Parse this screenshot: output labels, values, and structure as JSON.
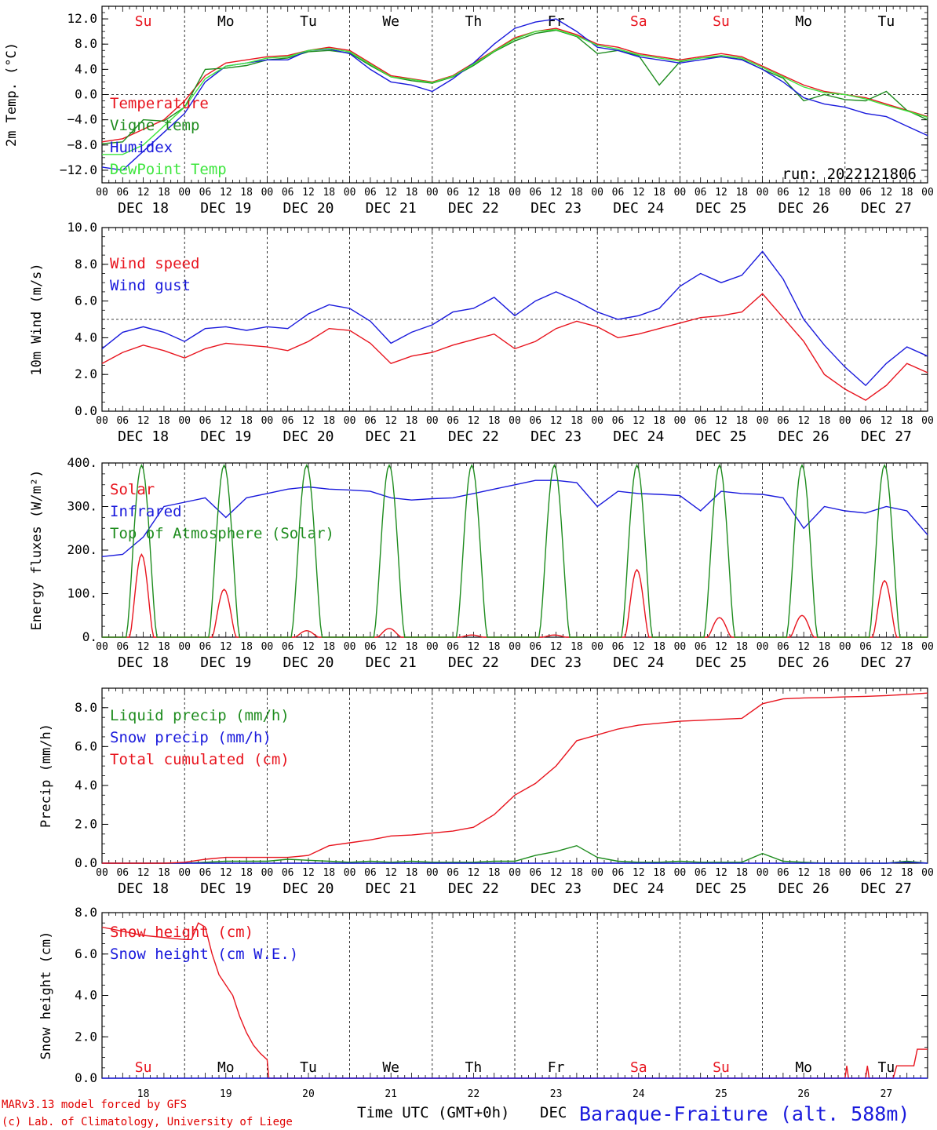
{
  "colors": {
    "red": "#e8141e",
    "green": "#1e8c1e",
    "blue": "#1a1adc",
    "lightgreen": "#3ee63e",
    "darkred": "#c80000"
  },
  "run_label": "run: 2022121806",
  "x_axis": {
    "title": "Time UTC (GMT+0h)",
    "month": "DEC",
    "hour_labels": [
      "00",
      "06",
      "12",
      "18"
    ],
    "dates": [
      "DEC 18",
      "DEC 19",
      "DEC 20",
      "DEC 21",
      "DEC 22",
      "DEC 23",
      "DEC 24",
      "DEC 25",
      "DEC 26",
      "DEC 27"
    ],
    "bottom_days": [
      "18",
      "19",
      "20",
      "21",
      "22",
      "23",
      "24",
      "25",
      "26",
      "27"
    ]
  },
  "weekdays": [
    {
      "label": "Su",
      "color": "#e8141e"
    },
    {
      "label": "Mo",
      "color": "#000000"
    },
    {
      "label": "Tu",
      "color": "#000000"
    },
    {
      "label": "We",
      "color": "#000000"
    },
    {
      "label": "Th",
      "color": "#000000"
    },
    {
      "label": "Fr",
      "color": "#000000"
    },
    {
      "label": "Sa",
      "color": "#e8141e"
    },
    {
      "label": "Su",
      "color": "#e8141e"
    },
    {
      "label": "Mo",
      "color": "#000000"
    },
    {
      "label": "Tu",
      "color": "#000000"
    }
  ],
  "footer": {
    "line1": "MARv3.13 model forced by GFS",
    "line2": "(c) Lab. of Climatology, University of Liege",
    "station": "Baraque-Fraiture (alt. 588m)"
  },
  "chart_data": [
    {
      "type": "line",
      "ylabel": "2m Temp. (°C)",
      "ylim": [
        -14,
        14
      ],
      "yticks": [
        -12,
        -8,
        -4,
        0,
        4,
        8,
        12
      ],
      "ytick_labels": [
        "−12.0",
        "−8.0",
        "−4.0",
        "0.0",
        "4.0",
        "8.0",
        "12.0"
      ],
      "ref_line": 0,
      "x_hours": [
        0,
        6,
        12,
        18,
        24,
        30,
        36,
        42,
        48,
        54,
        60,
        66,
        72,
        78,
        84,
        90,
        96,
        102,
        108,
        114,
        120,
        126,
        132,
        138,
        144,
        150,
        156,
        162,
        168,
        174,
        180,
        186,
        192,
        198,
        204,
        210,
        216,
        222,
        228,
        234,
        240
      ],
      "series": [
        {
          "name": "Temperature",
          "color": "#e8141e",
          "values": [
            -7.5,
            -7.0,
            -5.5,
            -4,
            -1,
            3,
            5,
            5.5,
            6,
            6.2,
            7,
            7.5,
            7,
            5,
            3,
            2.5,
            2,
            3,
            5,
            7,
            9,
            10,
            10.5,
            9.5,
            8,
            7.5,
            6.5,
            6,
            5.5,
            6,
            6.5,
            6,
            4.5,
            3,
            1.5,
            0.5,
            0,
            -0.5,
            -1.5,
            -2.5,
            -3.5
          ]
        },
        {
          "name": "Vigne temp",
          "color": "#1e8c1e",
          "values": [
            -7.8,
            -7.5,
            -4,
            -4.2,
            -2,
            4,
            4.2,
            4.6,
            5.5,
            5.8,
            6.8,
            7,
            6.6,
            4.6,
            2.8,
            2.2,
            1.8,
            2.8,
            4.6,
            6.8,
            8.5,
            9.7,
            10.2,
            9.2,
            6.5,
            7,
            6.2,
            1.5,
            5.2,
            5.8,
            6,
            5.6,
            4,
            2.6,
            -1,
            0,
            -0.8,
            -1,
            0.5,
            -2.5,
            -4
          ]
        },
        {
          "name": "Humidex",
          "color": "#1a1adc",
          "values": [
            -11.5,
            -12,
            -9,
            -6,
            -3,
            2,
            4.5,
            5,
            5.5,
            5.5,
            7,
            7.2,
            6.5,
            4,
            2,
            1.5,
            0.5,
            2.5,
            5,
            8,
            10.5,
            11.5,
            12,
            10,
            7.5,
            7,
            6,
            5.5,
            5,
            5.5,
            6,
            5.5,
            4,
            2,
            -0.5,
            -1.5,
            -2,
            -3,
            -3.5,
            -5,
            -6.5
          ]
        },
        {
          "name": "DewPoint Temp",
          "color": "#3ee63e",
          "values": [
            -9.5,
            -9.5,
            -8,
            -5,
            -2,
            2.5,
            4.5,
            5,
            5.8,
            6,
            7,
            7.3,
            6.8,
            4.8,
            2.8,
            2.4,
            1.9,
            2.9,
            4.8,
            6.9,
            8.8,
            10,
            10.3,
            9.3,
            7.8,
            7.2,
            6.3,
            5.8,
            5.3,
            5.8,
            6.2,
            5.8,
            4.3,
            2.8,
            1.2,
            0.3,
            0,
            -0.7,
            -1.7,
            -2.6,
            -3.6
          ]
        }
      ]
    },
    {
      "type": "line",
      "ylabel": "10m Wind (m/s)",
      "ylim": [
        0,
        10
      ],
      "yticks": [
        0,
        2,
        4,
        6,
        8,
        10
      ],
      "ytick_labels": [
        "0.0",
        "2.0",
        "4.0",
        "6.0",
        "8.0",
        "10.0"
      ],
      "ref_line": 5,
      "x_hours": [
        0,
        6,
        12,
        18,
        24,
        30,
        36,
        42,
        48,
        54,
        60,
        66,
        72,
        78,
        84,
        90,
        96,
        102,
        108,
        114,
        120,
        126,
        132,
        138,
        144,
        150,
        156,
        162,
        168,
        174,
        180,
        186,
        192,
        198,
        204,
        210,
        216,
        222,
        228,
        234,
        240
      ],
      "series": [
        {
          "name": "Wind speed",
          "color": "#e8141e",
          "values": [
            2.6,
            3.2,
            3.6,
            3.3,
            2.9,
            3.4,
            3.7,
            3.6,
            3.5,
            3.3,
            3.8,
            4.5,
            4.4,
            3.7,
            2.6,
            3.0,
            3.2,
            3.6,
            3.9,
            4.2,
            3.4,
            3.8,
            4.5,
            4.9,
            4.6,
            4.0,
            4.2,
            4.5,
            4.8,
            5.1,
            5.2,
            5.4,
            6.4,
            5.1,
            3.8,
            2.0,
            1.2,
            0.6,
            1.4,
            2.6,
            2.1
          ]
        },
        {
          "name": "Wind gust",
          "color": "#1a1adc",
          "values": [
            3.4,
            4.3,
            4.6,
            4.3,
            3.8,
            4.5,
            4.6,
            4.4,
            4.6,
            4.5,
            5.3,
            5.8,
            5.6,
            4.9,
            3.7,
            4.3,
            4.7,
            5.4,
            5.6,
            6.2,
            5.2,
            6.0,
            6.5,
            6.0,
            5.4,
            5.0,
            5.2,
            5.6,
            6.8,
            7.5,
            7.0,
            7.4,
            8.7,
            7.2,
            5.0,
            3.6,
            2.4,
            1.4,
            2.6,
            3.5,
            3.0
          ]
        }
      ]
    },
    {
      "type": "line",
      "ylabel": "Energy fluxes (W/m²)",
      "ylim": [
        0,
        400
      ],
      "yticks": [
        0,
        100,
        200,
        300,
        400
      ],
      "ytick_labels": [
        "0.",
        "100.",
        "200.",
        "300.",
        "400."
      ],
      "series": [
        {
          "name": "Solar",
          "color": "#e8141e",
          "daily_peaks": [
            190,
            110,
            15,
            20,
            5,
            5,
            155,
            45,
            50,
            130
          ]
        },
        {
          "name": "Infrared",
          "color": "#1a1adc",
          "x_hours": [
            0,
            6,
            12,
            18,
            24,
            30,
            36,
            42,
            48,
            54,
            60,
            66,
            72,
            78,
            84,
            90,
            96,
            102,
            108,
            114,
            120,
            126,
            132,
            138,
            144,
            150,
            156,
            162,
            168,
            174,
            180,
            186,
            192,
            198,
            204,
            210,
            216,
            222,
            228,
            234,
            240
          ],
          "values": [
            185,
            190,
            230,
            300,
            310,
            320,
            275,
            320,
            330,
            340,
            345,
            340,
            338,
            335,
            320,
            315,
            318,
            320,
            330,
            340,
            350,
            360,
            360,
            355,
            300,
            335,
            330,
            328,
            325,
            290,
            335,
            330,
            328,
            320,
            250,
            300,
            290,
            285,
            300,
            290,
            235
          ]
        },
        {
          "name": "Top of Atmosphere (Solar)",
          "color": "#1e8c1e",
          "daily_peaks": [
            395,
            395,
            395,
            395,
            395,
            395,
            395,
            395,
            395,
            395
          ]
        }
      ]
    },
    {
      "type": "line",
      "ylabel": "Precip (mm/h)",
      "ylim": [
        0,
        9
      ],
      "yticks": [
        0,
        2,
        4,
        6,
        8
      ],
      "ytick_labels": [
        "0.0",
        "2.0",
        "4.0",
        "6.0",
        "8.0"
      ],
      "x_hours": [
        0,
        6,
        12,
        18,
        24,
        30,
        36,
        42,
        48,
        54,
        60,
        66,
        72,
        78,
        84,
        90,
        96,
        102,
        108,
        114,
        120,
        126,
        132,
        138,
        144,
        150,
        156,
        162,
        168,
        174,
        180,
        186,
        192,
        198,
        204,
        210,
        216,
        222,
        228,
        234,
        240
      ],
      "series": [
        {
          "name": "Liquid precip (mm/h)",
          "color": "#1e8c1e",
          "values": [
            0,
            0,
            0,
            0,
            0,
            0.05,
            0.1,
            0.1,
            0.1,
            0.2,
            0.15,
            0.1,
            0.05,
            0.1,
            0.05,
            0.1,
            0.05,
            0.05,
            0.05,
            0.1,
            0.1,
            0.4,
            0.6,
            0.9,
            0.3,
            0.1,
            0.05,
            0.05,
            0.1,
            0.05,
            0.05,
            0.05,
            0.5,
            0.1,
            0.05,
            0,
            0,
            0,
            0,
            0.1,
            0
          ]
        },
        {
          "name": "Snow precip (mm/h)",
          "color": "#1a1adc",
          "values": [
            0,
            0,
            0,
            0,
            0,
            0,
            0,
            0,
            0,
            0,
            0,
            0,
            0,
            0,
            0,
            0,
            0,
            0,
            0,
            0,
            0,
            0,
            0,
            0,
            0,
            0,
            0,
            0,
            0,
            0,
            0,
            0,
            0,
            0,
            0,
            0,
            0,
            0,
            0,
            0.05,
            0
          ]
        },
        {
          "name": "Total cumulated (cm)",
          "color": "#e8141e",
          "values": [
            0,
            0,
            0,
            0,
            0.05,
            0.2,
            0.3,
            0.3,
            0.3,
            0.3,
            0.4,
            0.9,
            1.05,
            1.2,
            1.4,
            1.45,
            1.55,
            1.65,
            1.85,
            2.5,
            3.5,
            4.1,
            5.0,
            6.3,
            6.6,
            6.9,
            7.1,
            7.2,
            7.3,
            7.35,
            7.4,
            7.45,
            8.2,
            8.45,
            8.5,
            8.52,
            8.55,
            8.58,
            8.62,
            8.68,
            8.75
          ]
        }
      ]
    },
    {
      "type": "line",
      "ylabel": "Snow height (cm)",
      "ylim": [
        0,
        8
      ],
      "yticks": [
        0,
        2,
        4,
        6,
        8
      ],
      "ytick_labels": [
        "0.0",
        "2.0",
        "4.0",
        "6.0",
        "8.0"
      ],
      "series": [
        {
          "name": "Snow height (cm)",
          "color": "#e8141e",
          "points": [
            [
              0,
              7.3
            ],
            [
              6,
              7.1
            ],
            [
              12,
              6.9
            ],
            [
              18,
              6.8
            ],
            [
              24,
              6.7
            ],
            [
              26,
              6.7
            ],
            [
              28,
              7.5
            ],
            [
              30,
              7.3
            ],
            [
              32,
              6.0
            ],
            [
              34,
              5.0
            ],
            [
              38,
              4.0
            ],
            [
              40,
              3.0
            ],
            [
              42,
              2.2
            ],
            [
              44,
              1.6
            ],
            [
              46,
              1.2
            ],
            [
              48,
              0.9
            ],
            [
              48.5,
              0
            ],
            [
              216,
              0
            ],
            [
              216.5,
              0.6
            ],
            [
              217,
              0
            ],
            [
              222,
              0
            ],
            [
              222.5,
              0.6
            ],
            [
              223,
              0
            ],
            [
              230,
              0
            ],
            [
              231,
              0.6
            ],
            [
              236,
              0.6
            ],
            [
              237,
              1.4
            ],
            [
              240,
              1.4
            ]
          ]
        },
        {
          "name": "Snow height (cm W.E.)",
          "color": "#1a1adc",
          "points": [
            [
              0,
              0
            ],
            [
              240,
              0
            ]
          ]
        }
      ]
    }
  ]
}
